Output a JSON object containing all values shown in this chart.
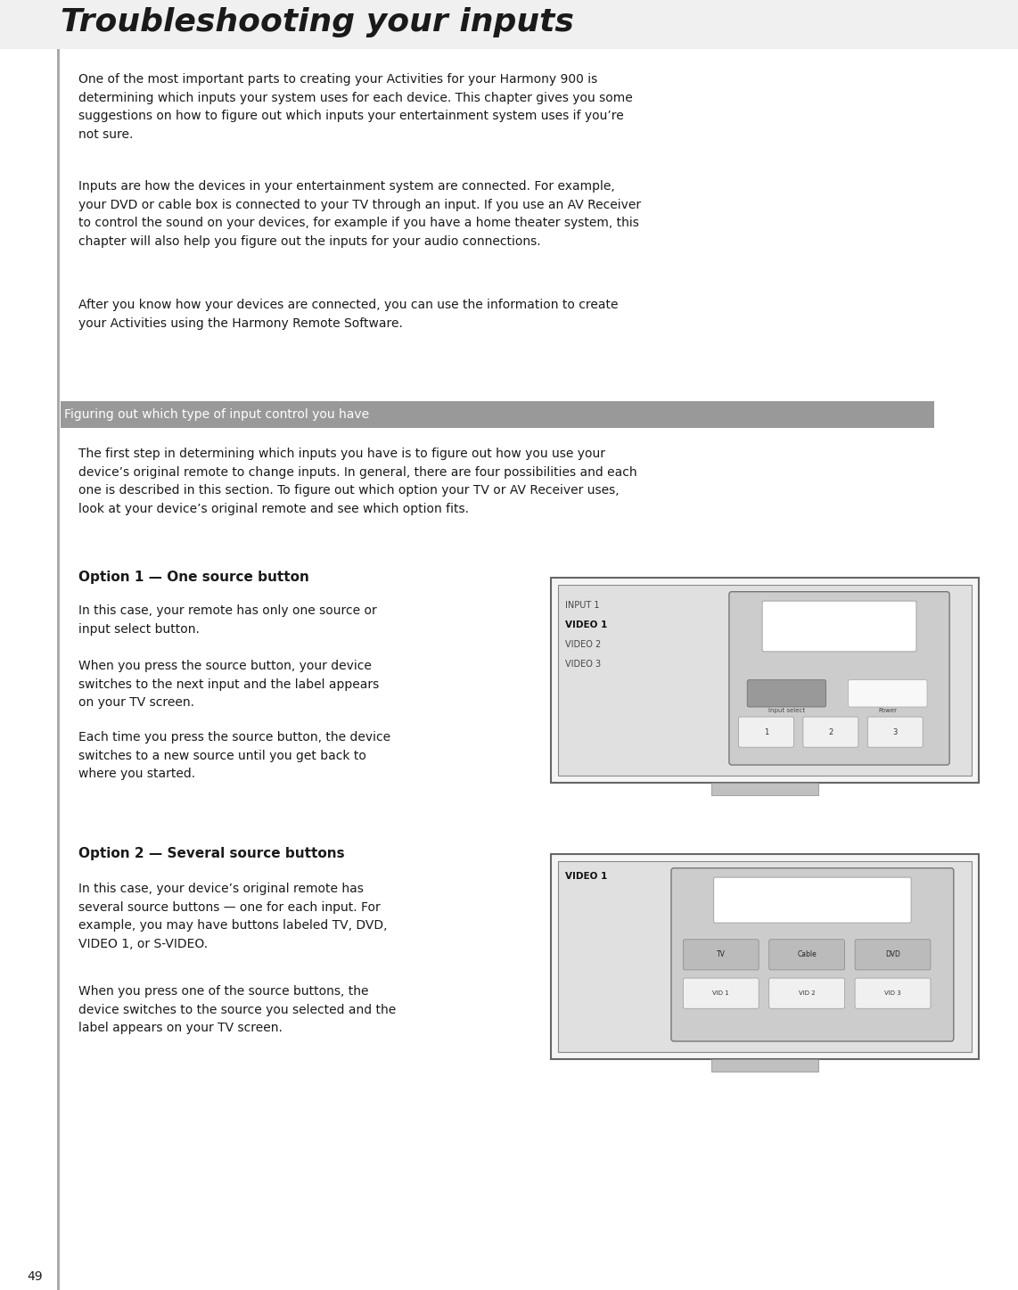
{
  "background_color": "#ffffff",
  "page_number": "49",
  "title": "Troubleshooting your inputs",
  "text_color": "#1a1a1a",
  "body_font_size": 10.0,
  "option_title_font_size": 11.0,
  "section_header_text": "Figuring out which type of input control you have",
  "section_header_bg": "#999999",
  "section_header_text_color": "#ffffff",
  "left_bar_color": "#888888",
  "para1": "One of the most important parts to creating your Activities for your Harmony 900 is\ndetermining which inputs your system uses for each device. This chapter gives you some\nsuggestions on how to figure out which inputs your entertainment system uses if you’re\nnot sure.",
  "para2": "Inputs are how the devices in your entertainment system are connected. For example,\nyour DVD or cable box is connected to your TV through an input. If you use an AV Receiver\nto control the sound on your devices, for example if you have a home theater system, this\nchapter will also help you figure out the inputs for your audio connections.",
  "para3": "After you know how your devices are connected, you can use the information to create\nyour Activities using the Harmony Remote Software.",
  "section_para": "The first step in determining which inputs you have is to figure out how you use your\ndevice’s original remote to change inputs. In general, there are four possibilities and each\none is described in this section. To figure out which option your TV or AV Receiver uses,\nlook at your device’s original remote and see which option fits.",
  "option1_title": "Option 1 — One source button",
  "option1_para1": "In this case, your remote has only one source or\ninput select button.",
  "option1_para2": "When you press the source button, your device\nswitches to the next input and the label appears\non your TV screen.",
  "option1_para3": "Each time you press the source button, the device\nswitches to a new source until you get back to\nwhere you started.",
  "option2_title": "Option 2 — Several source buttons",
  "option2_para1": "In this case, your device’s original remote has\nseveral source buttons — one for each input. For\nexample, you may have buttons labeled TV, DVD,\nVIDEO 1, or S-VIDEO.",
  "option2_para2": "When you press one of the source buttons, the\ndevice switches to the source you selected and the\nlabel appears on your TV screen."
}
